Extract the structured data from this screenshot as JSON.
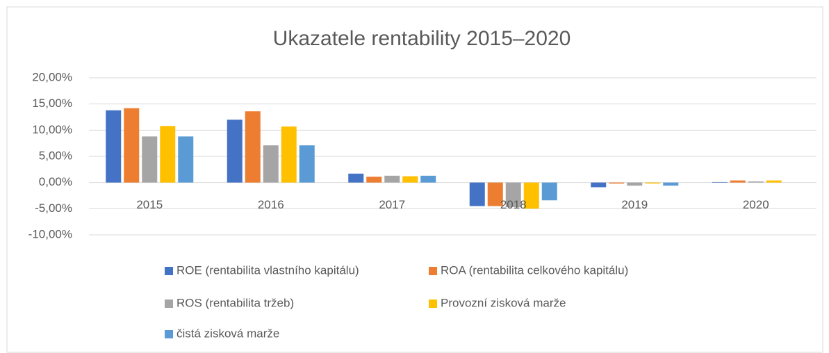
{
  "chart_data": {
    "type": "bar",
    "title": "Ukazatele rentability 2015–2020",
    "categories": [
      "2015",
      "2016",
      "2017",
      "2018",
      "2019",
      "2020"
    ],
    "series": [
      {
        "name": "ROE (rentabilita vlastního kapitálu)",
        "color": "#4472c4",
        "values": [
          13.8,
          12.0,
          1.7,
          -4.5,
          -0.9,
          0.1
        ]
      },
      {
        "name": "ROA (rentabilita celkového kapitálu)",
        "color": "#ed7d31",
        "values": [
          14.2,
          13.6,
          1.1,
          -4.5,
          -0.2,
          0.4
        ]
      },
      {
        "name": "ROS (rentabilita tržeb)",
        "color": "#a5a5a5",
        "values": [
          8.8,
          7.1,
          1.3,
          -4.7,
          -0.6,
          0.2
        ]
      },
      {
        "name": "Provozní zisková marže",
        "color": "#ffc000",
        "values": [
          10.8,
          10.7,
          1.2,
          -5.0,
          -0.2,
          0.4
        ]
      },
      {
        "name": "čistá zisková marže",
        "color": "#5b9bd5",
        "values": [
          8.8,
          7.1,
          1.3,
          -3.4,
          -0.6,
          0.0
        ]
      }
    ],
    "ylim": [
      -10,
      20
    ],
    "yticks": [
      {
        "value": -10,
        "label": "-10,00%"
      },
      {
        "value": -5,
        "label": "-5,00%"
      },
      {
        "value": 0,
        "label": "0,00%"
      },
      {
        "value": 5,
        "label": "5,00%"
      },
      {
        "value": 10,
        "label": "10,00%"
      },
      {
        "value": 15,
        "label": "15,00%"
      },
      {
        "value": 20,
        "label": "20,00%"
      }
    ],
    "grid": true,
    "legend": "bottom"
  }
}
